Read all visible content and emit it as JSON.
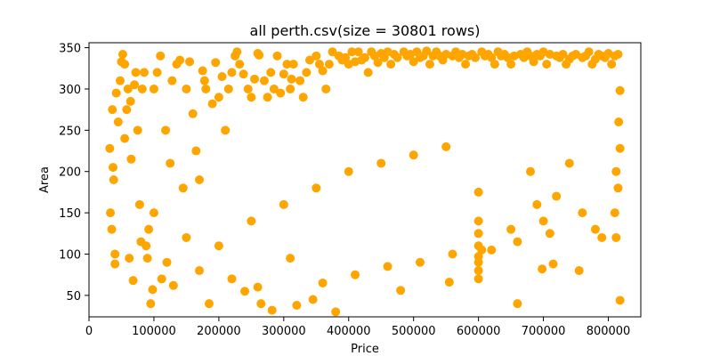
{
  "chart_data": {
    "type": "scatter",
    "title": "all perth.csv(size = 30801 rows)",
    "xlabel": "Price",
    "ylabel": "Area",
    "xlim": [
      0,
      850000
    ],
    "ylim": [
      24,
      356
    ],
    "xticks": [
      0,
      100000,
      200000,
      300000,
      400000,
      500000,
      600000,
      700000,
      800000
    ],
    "xtick_labels": [
      "0",
      "100000",
      "200000",
      "300000",
      "400000",
      "500000",
      "600000",
      "700000",
      "800000"
    ],
    "yticks": [
      50,
      100,
      150,
      200,
      250,
      300,
      350
    ],
    "ytick_labels": [
      "50",
      "100",
      "150",
      "200",
      "250",
      "300",
      "350"
    ],
    "grid": false,
    "marker_color": "#ffa500",
    "series": [
      {
        "values_description_omitted": true,
        "points": [
          [
            32000,
            228
          ],
          [
            33000,
            150
          ],
          [
            35000,
            130
          ],
          [
            36000,
            275
          ],
          [
            37000,
            205
          ],
          [
            38000,
            190
          ],
          [
            40000,
            100
          ],
          [
            40000,
            88
          ],
          [
            42000,
            295
          ],
          [
            45000,
            260
          ],
          [
            48000,
            310
          ],
          [
            50000,
            333
          ],
          [
            52000,
            342
          ],
          [
            55000,
            240
          ],
          [
            55000,
            330
          ],
          [
            58000,
            275
          ],
          [
            60000,
            300
          ],
          [
            62000,
            95
          ],
          [
            64000,
            285
          ],
          [
            65000,
            215
          ],
          [
            68000,
            68
          ],
          [
            70000,
            305
          ],
          [
            72000,
            320
          ],
          [
            75000,
            250
          ],
          [
            78000,
            160
          ],
          [
            80000,
            115
          ],
          [
            82000,
            300
          ],
          [
            85000,
            320
          ],
          [
            88000,
            110
          ],
          [
            90000,
            95
          ],
          [
            92000,
            130
          ],
          [
            95000,
            40
          ],
          [
            98000,
            57
          ],
          [
            100000,
            300
          ],
          [
            105000,
            320
          ],
          [
            110000,
            340
          ],
          [
            112000,
            70
          ],
          [
            118000,
            250
          ],
          [
            125000,
            210
          ],
          [
            128000,
            310
          ],
          [
            130000,
            62
          ],
          [
            135000,
            330
          ],
          [
            140000,
            335
          ],
          [
            145000,
            180
          ],
          [
            150000,
            300
          ],
          [
            155000,
            333
          ],
          [
            160000,
            270
          ],
          [
            165000,
            225
          ],
          [
            170000,
            190
          ],
          [
            175000,
            322
          ],
          [
            178000,
            310
          ],
          [
            180000,
            300
          ],
          [
            185000,
            40
          ],
          [
            190000,
            282
          ],
          [
            195000,
            332
          ],
          [
            200000,
            290
          ],
          [
            205000,
            315
          ],
          [
            210000,
            250
          ],
          [
            215000,
            300
          ],
          [
            220000,
            320
          ],
          [
            225000,
            340
          ],
          [
            228000,
            345
          ],
          [
            232000,
            330
          ],
          [
            238000,
            318
          ],
          [
            240000,
            55
          ],
          [
            245000,
            300
          ],
          [
            250000,
            290
          ],
          [
            255000,
            312
          ],
          [
            260000,
            343
          ],
          [
            262000,
            341
          ],
          [
            265000,
            40
          ],
          [
            270000,
            310
          ],
          [
            275000,
            290
          ],
          [
            280000,
            320
          ],
          [
            282000,
            32
          ],
          [
            285000,
            300
          ],
          [
            290000,
            340
          ],
          [
            295000,
            295
          ],
          [
            300000,
            318
          ],
          [
            305000,
            330
          ],
          [
            310000,
            300
          ],
          [
            312000,
            312
          ],
          [
            315000,
            330
          ],
          [
            320000,
            38
          ],
          [
            325000,
            310
          ],
          [
            330000,
            290
          ],
          [
            335000,
            320
          ],
          [
            340000,
            335
          ],
          [
            345000,
            45
          ],
          [
            350000,
            340
          ],
          [
            355000,
            330
          ],
          [
            360000,
            322
          ],
          [
            365000,
            300
          ],
          [
            370000,
            330
          ],
          [
            375000,
            345
          ],
          [
            380000,
            30
          ],
          [
            385000,
            340
          ],
          [
            390000,
            335
          ],
          [
            395000,
            338
          ],
          [
            400000,
            330
          ],
          [
            405000,
            345
          ],
          [
            410000,
            333
          ],
          [
            415000,
            345
          ],
          [
            420000,
            335
          ],
          [
            425000,
            338
          ],
          [
            430000,
            320
          ],
          [
            435000,
            345
          ],
          [
            440000,
            340
          ],
          [
            445000,
            332
          ],
          [
            450000,
            343
          ],
          [
            455000,
            338
          ],
          [
            460000,
            345
          ],
          [
            465000,
            330
          ],
          [
            470000,
            342
          ],
          [
            475000,
            338
          ],
          [
            480000,
            56
          ],
          [
            485000,
            345
          ],
          [
            490000,
            340
          ],
          [
            495000,
            342
          ],
          [
            500000,
            333
          ],
          [
            505000,
            345
          ],
          [
            510000,
            338
          ],
          [
            515000,
            340
          ],
          [
            520000,
            346
          ],
          [
            525000,
            330
          ],
          [
            530000,
            340
          ],
          [
            535000,
            345
          ],
          [
            540000,
            340
          ],
          [
            545000,
            335
          ],
          [
            550000,
            342
          ],
          [
            555000,
            66
          ],
          [
            560000,
            340
          ],
          [
            565000,
            345
          ],
          [
            570000,
            338
          ],
          [
            575000,
            342
          ],
          [
            580000,
            330
          ],
          [
            585000,
            340
          ],
          [
            590000,
            342
          ],
          [
            595000,
            338
          ],
          [
            600000,
            70
          ],
          [
            605000,
            345
          ],
          [
            610000,
            340
          ],
          [
            615000,
            342
          ],
          [
            620000,
            338
          ],
          [
            625000,
            330
          ],
          [
            630000,
            345
          ],
          [
            635000,
            340
          ],
          [
            640000,
            342
          ],
          [
            645000,
            338
          ],
          [
            650000,
            330
          ],
          [
            655000,
            340
          ],
          [
            660000,
            40
          ],
          [
            665000,
            342
          ],
          [
            670000,
            338
          ],
          [
            675000,
            345
          ],
          [
            680000,
            340
          ],
          [
            685000,
            333
          ],
          [
            690000,
            342
          ],
          [
            695000,
            340
          ],
          [
            698000,
            82
          ],
          [
            700000,
            345
          ],
          [
            705000,
            330
          ],
          [
            710000,
            342
          ],
          [
            715000,
            88
          ],
          [
            720000,
            340
          ],
          [
            725000,
            338
          ],
          [
            730000,
            342
          ],
          [
            735000,
            330
          ],
          [
            740000,
            336
          ],
          [
            745000,
            340
          ],
          [
            750000,
            342
          ],
          [
            755000,
            80
          ],
          [
            760000,
            338
          ],
          [
            765000,
            340
          ],
          [
            770000,
            345
          ],
          [
            775000,
            330
          ],
          [
            780000,
            336
          ],
          [
            785000,
            342
          ],
          [
            790000,
            340
          ],
          [
            795000,
            338
          ],
          [
            800000,
            343
          ],
          [
            805000,
            330
          ],
          [
            810000,
            340
          ],
          [
            812000,
            120
          ],
          [
            815000,
            342
          ],
          [
            818000,
            44
          ],
          [
            818000,
            298
          ],
          [
            818000,
            228
          ],
          [
            815000,
            180
          ],
          [
            810000,
            150
          ],
          [
            816000,
            260
          ],
          [
            812000,
            200
          ],
          [
            600000,
            110
          ],
          [
            605000,
            105
          ],
          [
            600000,
            90
          ],
          [
            600000,
            97
          ],
          [
            600000,
            80
          ],
          [
            600000,
            125
          ],
          [
            600000,
            140
          ],
          [
            600000,
            175
          ],
          [
            690000,
            160
          ],
          [
            680000,
            200
          ],
          [
            720000,
            170
          ],
          [
            740000,
            210
          ],
          [
            760000,
            150
          ],
          [
            790000,
            120
          ],
          [
            650000,
            130
          ],
          [
            700000,
            140
          ],
          [
            100000,
            150
          ],
          [
            150000,
            120
          ],
          [
            200000,
            110
          ],
          [
            250000,
            140
          ],
          [
            300000,
            160
          ],
          [
            350000,
            180
          ],
          [
            400000,
            200
          ],
          [
            450000,
            210
          ],
          [
            500000,
            220
          ],
          [
            550000,
            230
          ],
          [
            120000,
            90
          ],
          [
            170000,
            80
          ],
          [
            220000,
            70
          ],
          [
            260000,
            60
          ],
          [
            310000,
            95
          ],
          [
            360000,
            65
          ],
          [
            410000,
            75
          ],
          [
            460000,
            85
          ],
          [
            510000,
            90
          ],
          [
            560000,
            100
          ],
          [
            620000,
            105
          ],
          [
            660000,
            115
          ],
          [
            710000,
            125
          ],
          [
            780000,
            130
          ]
        ]
      }
    ]
  }
}
